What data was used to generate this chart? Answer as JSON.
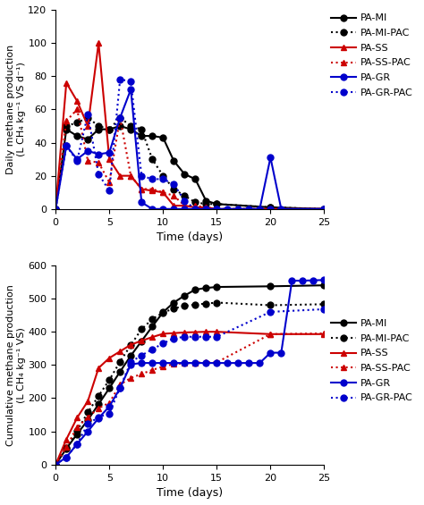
{
  "daily": {
    "PA_MI": {
      "x": [
        0,
        1,
        2,
        3,
        4,
        5,
        6,
        7,
        8,
        9,
        10,
        11,
        12,
        13,
        14,
        15,
        20,
        25
      ],
      "y": [
        0,
        48,
        44,
        42,
        48,
        48,
        50,
        48,
        44,
        44,
        43,
        29,
        21,
        18,
        5,
        3,
        1,
        0
      ],
      "color": "#000000",
      "linestyle": "solid",
      "marker": "o"
    },
    "PA_MI_PAC": {
      "x": [
        0,
        1,
        2,
        3,
        4,
        5,
        6,
        7,
        8,
        9,
        10,
        11,
        12,
        13,
        14,
        15,
        20,
        25
      ],
      "y": [
        0,
        50,
        52,
        55,
        50,
        48,
        55,
        50,
        48,
        30,
        20,
        12,
        8,
        4,
        3,
        3,
        1,
        0
      ],
      "color": "#000000",
      "linestyle": "dotted",
      "marker": "o"
    },
    "PA_SS": {
      "x": [
        0,
        1,
        2,
        3,
        4,
        5,
        6,
        7,
        8,
        9,
        10,
        11,
        12,
        13,
        14,
        15,
        20,
        25
      ],
      "y": [
        0,
        76,
        65,
        50,
        100,
        30,
        20,
        20,
        12,
        11,
        10,
        2,
        2,
        1,
        1,
        0,
        0,
        0
      ],
      "color": "#cc0000",
      "linestyle": "solid",
      "marker": "^"
    },
    "PA_SS_PAC": {
      "x": [
        0,
        1,
        2,
        3,
        4,
        5,
        6,
        7,
        8,
        9,
        10,
        11,
        12,
        13,
        14,
        15,
        20,
        25
      ],
      "y": [
        0,
        53,
        60,
        29,
        28,
        16,
        55,
        20,
        12,
        12,
        10,
        8,
        2,
        2,
        1,
        0,
        0,
        0
      ],
      "color": "#cc0000",
      "linestyle": "dotted",
      "marker": "^"
    },
    "PA_GR": {
      "x": [
        0,
        1,
        2,
        3,
        4,
        5,
        6,
        7,
        8,
        9,
        10,
        11,
        12,
        13,
        14,
        15,
        16,
        17,
        18,
        19,
        20,
        21,
        25
      ],
      "y": [
        0,
        38,
        30,
        35,
        33,
        34,
        55,
        72,
        4,
        0,
        0,
        0,
        0,
        0,
        0,
        0,
        0,
        0,
        0,
        0,
        31,
        0,
        0
      ],
      "color": "#0000cc",
      "linestyle": "solid",
      "marker": "o"
    },
    "PA_GR_PAC": {
      "x": [
        0,
        1,
        2,
        3,
        4,
        5,
        6,
        7,
        8,
        9,
        10,
        11,
        12,
        13,
        14,
        15,
        20,
        25
      ],
      "y": [
        0,
        38,
        29,
        57,
        21,
        11,
        78,
        77,
        20,
        18,
        18,
        15,
        5,
        0,
        0,
        0,
        0,
        0
      ],
      "color": "#0000cc",
      "linestyle": "dotted",
      "marker": "o"
    }
  },
  "cumulative": {
    "PA_MI": {
      "x": [
        0,
        1,
        2,
        3,
        4,
        5,
        6,
        7,
        8,
        9,
        10,
        11,
        12,
        13,
        14,
        15,
        20,
        25
      ],
      "y": [
        0,
        48,
        92,
        134,
        182,
        230,
        280,
        328,
        372,
        416,
        459,
        488,
        509,
        527,
        532,
        535,
        537,
        540
      ],
      "color": "#000000",
      "linestyle": "solid",
      "marker": "o"
    },
    "PA_MI_PAC": {
      "x": [
        0,
        1,
        2,
        3,
        4,
        5,
        6,
        7,
        8,
        9,
        10,
        11,
        12,
        13,
        14,
        15,
        20,
        25
      ],
      "y": [
        0,
        50,
        102,
        157,
        207,
        255,
        310,
        360,
        408,
        438,
        458,
        470,
        478,
        482,
        485,
        488,
        480,
        483
      ],
      "color": "#000000",
      "linestyle": "dotted",
      "marker": "o"
    },
    "PA_SS": {
      "x": [
        0,
        1,
        2,
        3,
        4,
        5,
        6,
        7,
        8,
        9,
        10,
        11,
        12,
        13,
        14,
        15,
        20,
        25
      ],
      "y": [
        0,
        76,
        141,
        191,
        291,
        321,
        341,
        361,
        373,
        384,
        394,
        396,
        398,
        399,
        400,
        400,
        393,
        393
      ],
      "color": "#cc0000",
      "linestyle": "solid",
      "marker": "^"
    },
    "PA_SS_PAC": {
      "x": [
        0,
        1,
        2,
        3,
        4,
        5,
        6,
        7,
        8,
        9,
        10,
        11,
        12,
        13,
        14,
        15,
        20,
        25
      ],
      "y": [
        0,
        53,
        113,
        142,
        170,
        186,
        241,
        261,
        273,
        285,
        295,
        303,
        305,
        307,
        308,
        308,
        393,
        395
      ],
      "color": "#cc0000",
      "linestyle": "dotted",
      "marker": "^"
    },
    "PA_GR": {
      "x": [
        0,
        1,
        2,
        3,
        4,
        5,
        6,
        7,
        8,
        9,
        10,
        11,
        12,
        13,
        14,
        15,
        16,
        17,
        18,
        19,
        20,
        21,
        22,
        23,
        24,
        25
      ],
      "y": [
        0,
        22,
        62,
        100,
        140,
        175,
        230,
        302,
        306,
        306,
        306,
        306,
        306,
        306,
        306,
        306,
        306,
        306,
        306,
        306,
        337,
        337,
        554,
        554,
        555,
        556
      ],
      "color": "#0000cc",
      "linestyle": "solid",
      "marker": "o"
    },
    "PA_GR_PAC": {
      "x": [
        0,
        1,
        2,
        3,
        4,
        5,
        6,
        7,
        8,
        9,
        10,
        11,
        12,
        13,
        14,
        15,
        20,
        25
      ],
      "y": [
        0,
        22,
        62,
        122,
        143,
        154,
        232,
        309,
        329,
        347,
        365,
        380,
        385,
        385,
        385,
        385,
        460,
        468
      ],
      "color": "#0000cc",
      "linestyle": "dotted",
      "marker": "o"
    }
  },
  "legend_entries": [
    {
      "label": "PA-MI",
      "color": "#000000",
      "linestyle": "solid",
      "marker": "o"
    },
    {
      "label": "PA-MI-PAC",
      "color": "#000000",
      "linestyle": "dotted",
      "marker": "o"
    },
    {
      "label": "PA-SS",
      "color": "#cc0000",
      "linestyle": "solid",
      "marker": "^"
    },
    {
      "label": "PA-SS-PAC",
      "color": "#cc0000",
      "linestyle": "dotted",
      "marker": "^"
    },
    {
      "label": "PA-GR",
      "color": "#0000cc",
      "linestyle": "solid",
      "marker": "o"
    },
    {
      "label": "PA-GR-PAC",
      "color": "#0000cc",
      "linestyle": "dotted",
      "marker": "o"
    }
  ],
  "daily_ylabel": "Daily methane production\n(L CH₄ kg⁻¹ VS d⁻¹)",
  "cumulative_ylabel": "Cumulative methane production\n(L CH₄ kg⁻¹ VS)",
  "xlabel": "Time (days)",
  "daily_ylim": [
    0,
    120
  ],
  "daily_yticks": [
    0,
    20,
    40,
    60,
    80,
    100,
    120
  ],
  "cumulative_ylim": [
    0,
    600
  ],
  "cumulative_yticks": [
    0,
    100,
    200,
    300,
    400,
    500,
    600
  ],
  "xlim": [
    0,
    25
  ],
  "xticks": [
    0,
    5,
    10,
    15,
    20,
    25
  ]
}
